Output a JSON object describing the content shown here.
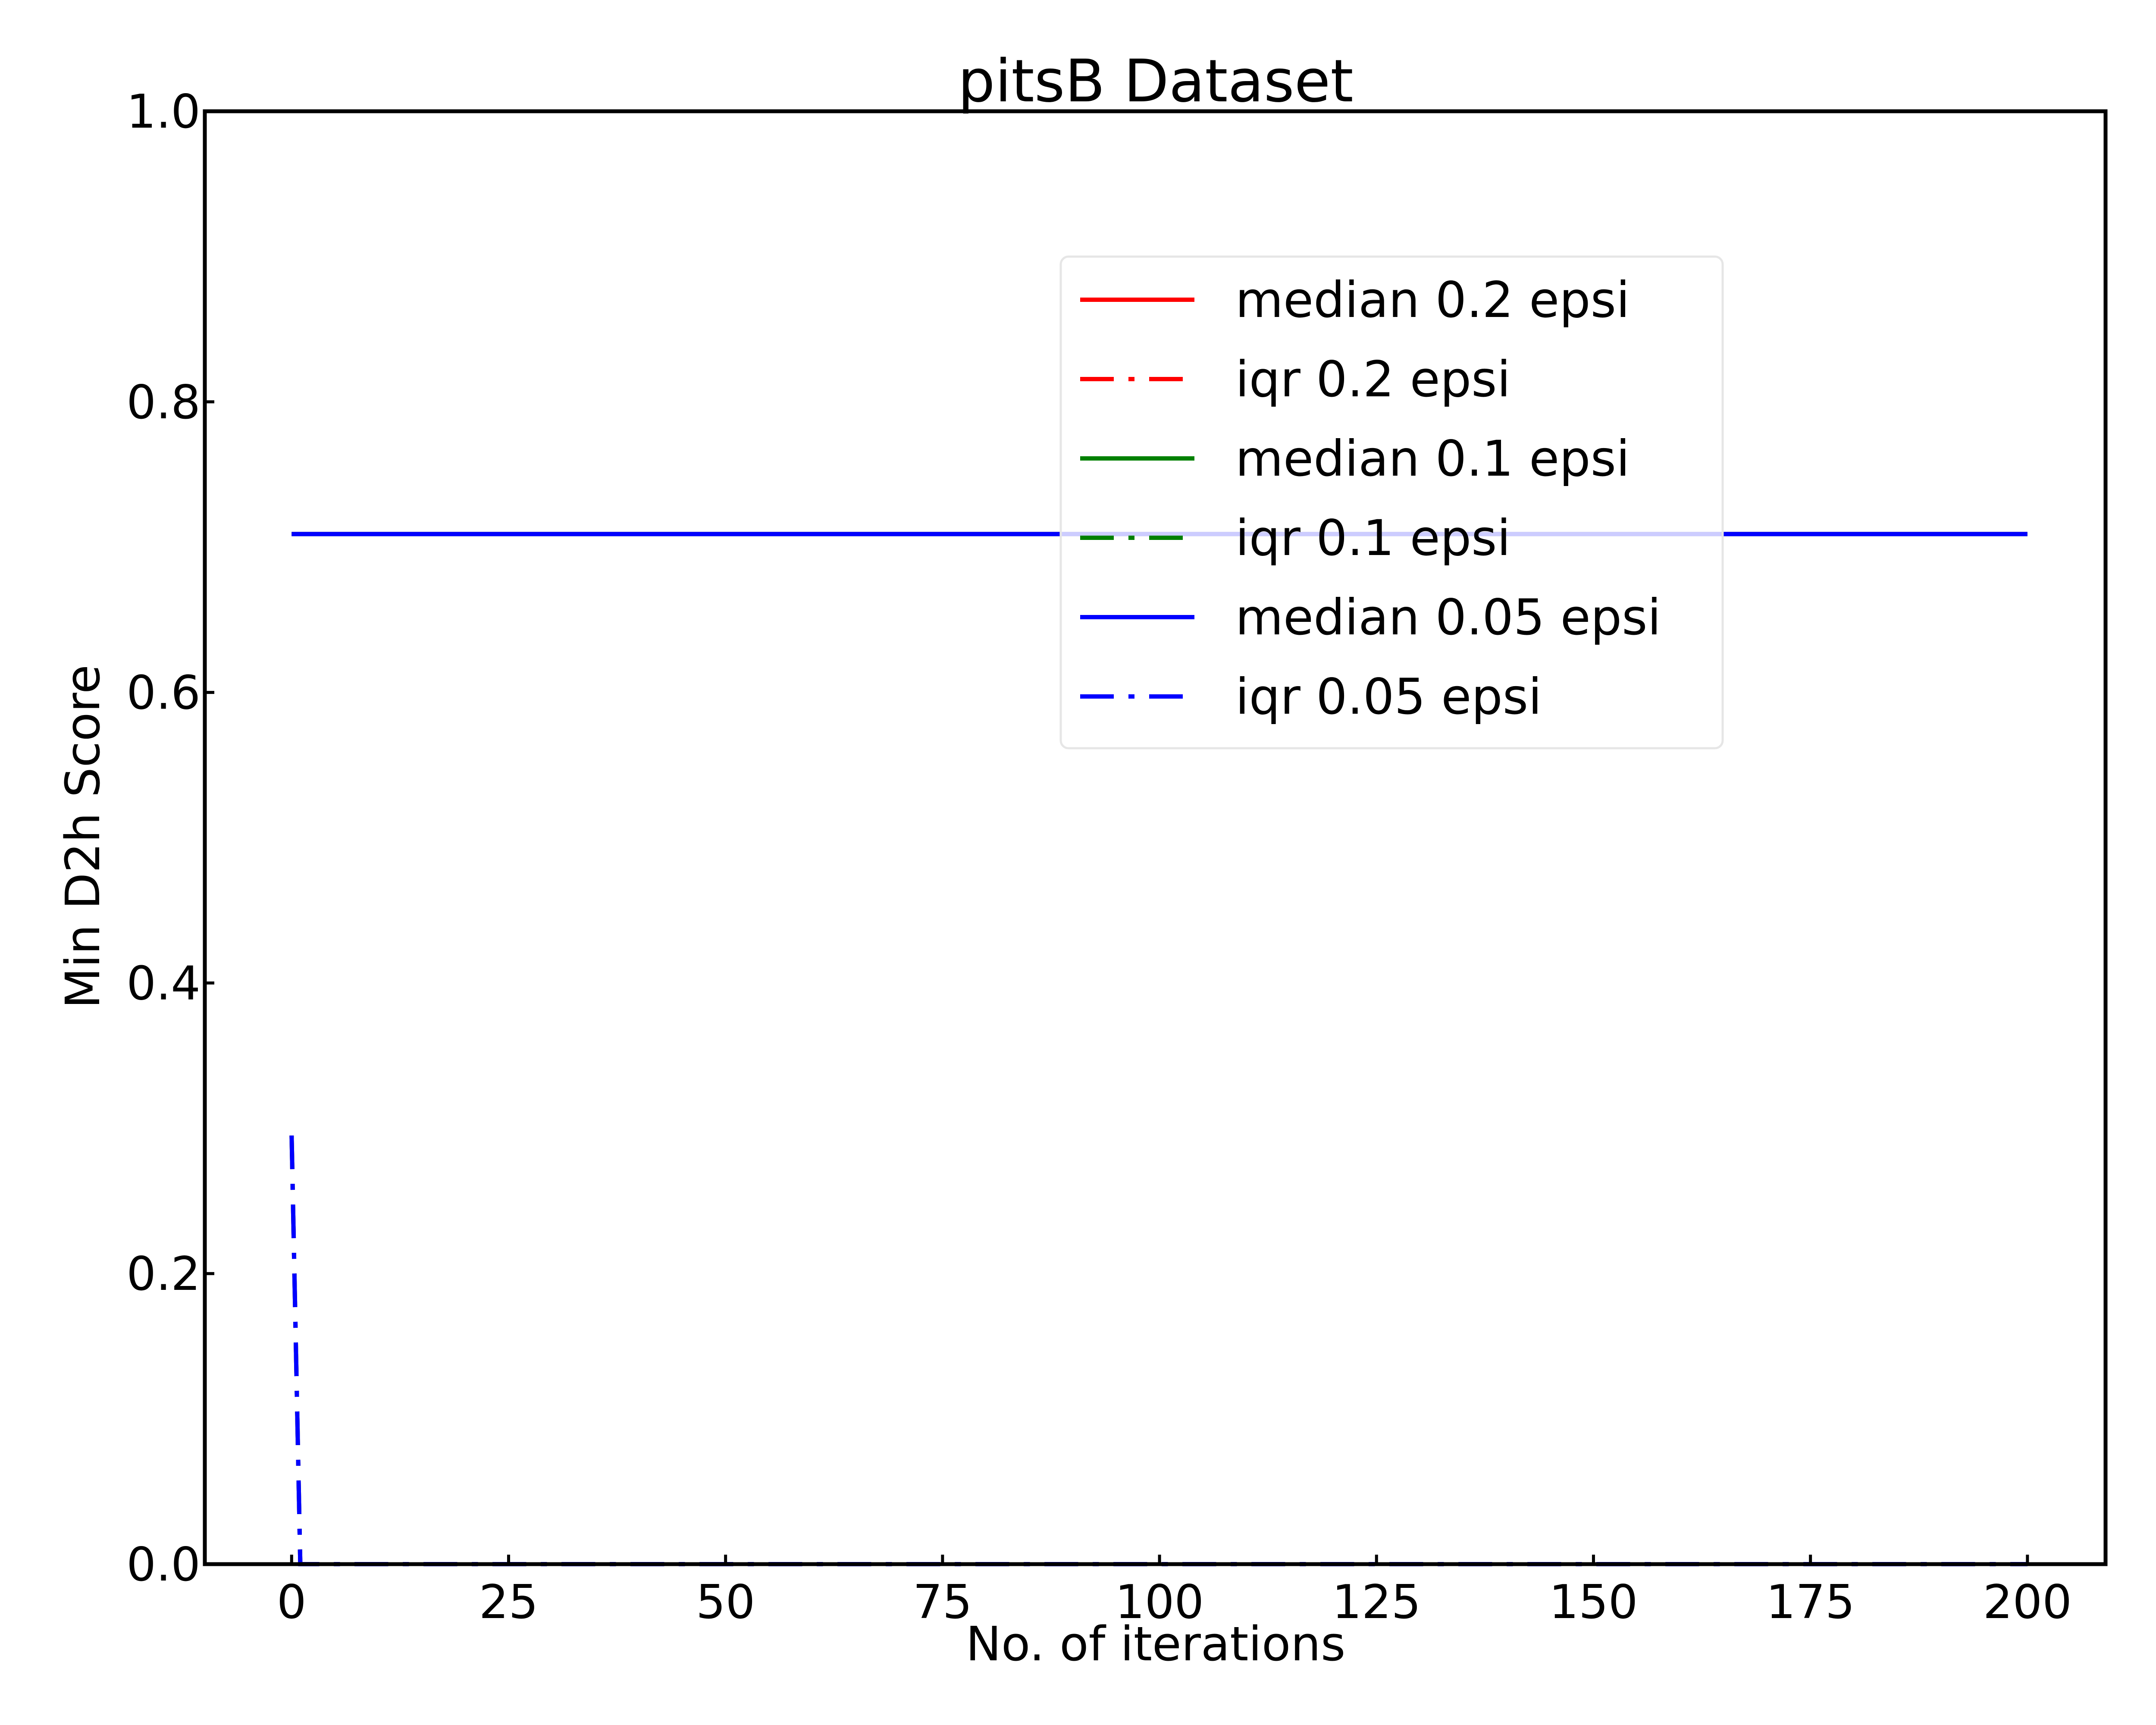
{
  "chart_data": {
    "type": "line",
    "title": "pitsB Dataset",
    "xlabel": "No. of iterations",
    "ylabel": "Min D2h Score",
    "xlim": [
      -10,
      209
    ],
    "ylim": [
      0.0,
      1.0
    ],
    "x_ticks": [
      0,
      25,
      50,
      75,
      100,
      125,
      150,
      175,
      200
    ],
    "y_ticks": [
      0.0,
      0.2,
      0.4,
      0.6,
      0.8,
      1.0
    ],
    "x_tick_labels": [
      "0",
      "25",
      "50",
      "75",
      "100",
      "125",
      "150",
      "175",
      "200"
    ],
    "y_tick_labels": [
      "0.0",
      "0.2",
      "0.4",
      "0.6",
      "0.8",
      "1.0"
    ],
    "grid": false,
    "legend_position": "upper-center-right",
    "series": [
      {
        "name": "median 0.2 epsi",
        "color": "#ff0000",
        "style": "solid",
        "x": [
          0,
          200
        ],
        "y": [
          0.709,
          0.709
        ]
      },
      {
        "name": "iqr 0.2 epsi",
        "color": "#ff0000",
        "style": "dashdot",
        "x": [
          0,
          1,
          200
        ],
        "y": [
          0.295,
          0.0,
          0.0
        ]
      },
      {
        "name": "median 0.1 epsi",
        "color": "#008000",
        "style": "solid",
        "x": [
          0,
          200
        ],
        "y": [
          0.709,
          0.709
        ]
      },
      {
        "name": "iqr 0.1 epsi",
        "color": "#008000",
        "style": "dashdot",
        "x": [
          0,
          1,
          200
        ],
        "y": [
          0.295,
          0.0,
          0.0
        ]
      },
      {
        "name": "median 0.05 epsi",
        "color": "#0000ff",
        "style": "solid",
        "x": [
          0,
          200
        ],
        "y": [
          0.709,
          0.709
        ]
      },
      {
        "name": "iqr 0.05 epsi",
        "color": "#0000ff",
        "style": "dashdot",
        "x": [
          0,
          1,
          200
        ],
        "y": [
          0.295,
          0.0,
          0.0
        ]
      }
    ]
  }
}
